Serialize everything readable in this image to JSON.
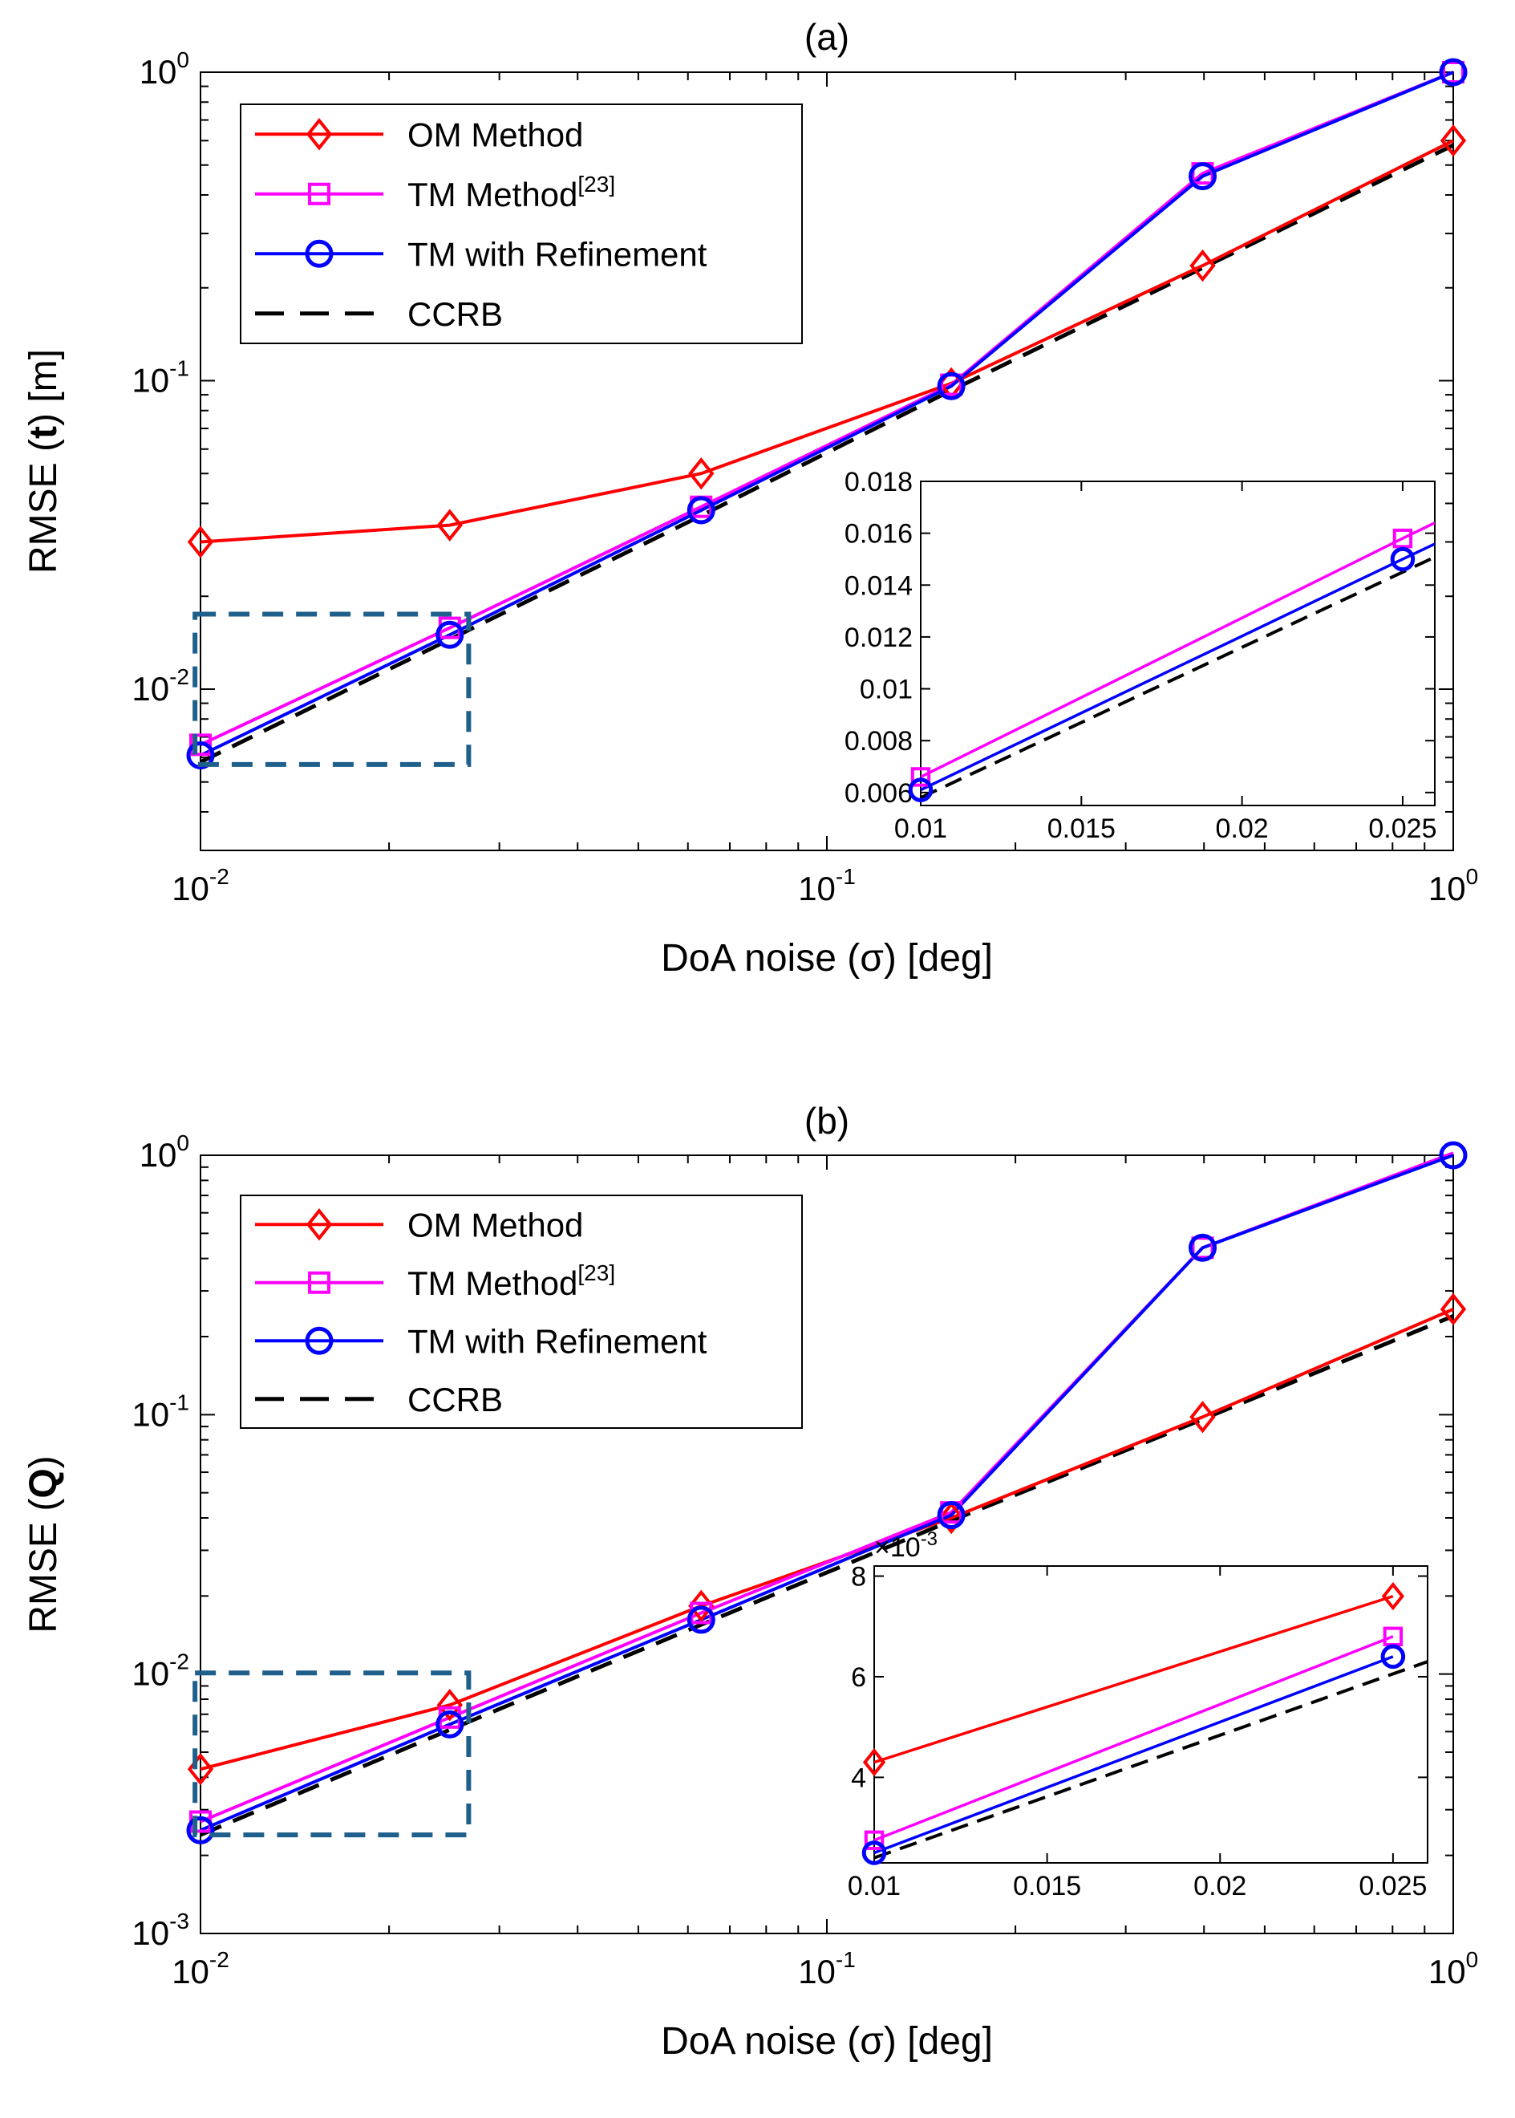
{
  "chart_data": [
    {
      "type": "line",
      "title": "(a)",
      "xlabel": "DoA noise (σ) [deg]",
      "ylabel_prefix": "RMSE (",
      "ylabel_bold": "t",
      "ylabel_suffix": ") [m]",
      "xscale": "log",
      "yscale": "log",
      "xlim": [
        0.01,
        1
      ],
      "ylim": [
        0.003,
        1
      ],
      "x_ticks": [
        {
          "v": 0.01,
          "base": "10",
          "exp": "-2"
        },
        {
          "v": 0.1,
          "base": "10",
          "exp": "-1"
        },
        {
          "v": 1,
          "base": "10",
          "exp": "0"
        }
      ],
      "y_ticks": [
        {
          "v": 0.01,
          "base": "10",
          "exp": "-2"
        },
        {
          "v": 0.1,
          "base": "10",
          "exp": "-1"
        },
        {
          "v": 1,
          "base": "10",
          "exp": "0"
        }
      ],
      "legend_position": "top-left",
      "series": [
        {
          "name": "OM Method",
          "color": "#ff0000",
          "marker": "diamond",
          "dashed": false,
          "x": [
            0.01,
            0.025,
            0.063,
            0.158,
            0.398,
            1.0
          ],
          "y": [
            0.03,
            0.034,
            0.05,
            0.098,
            0.236,
            0.6
          ]
        },
        {
          "name": "TM Method",
          "name_sup": "[23]",
          "color": "#ff00ff",
          "marker": "square",
          "dashed": false,
          "x": [
            0.01,
            0.025,
            0.063,
            0.158,
            0.398,
            1.0
          ],
          "y": [
            0.0066,
            0.0158,
            0.039,
            0.097,
            0.47,
            1.0
          ]
        },
        {
          "name": "TM with Refinement",
          "color": "#0000ff",
          "marker": "circle",
          "dashed": false,
          "x": [
            0.01,
            0.025,
            0.063,
            0.158,
            0.398,
            1.0
          ],
          "y": [
            0.0061,
            0.015,
            0.038,
            0.096,
            0.46,
            1.0
          ]
        },
        {
          "name": "CCRB",
          "color": "#000000",
          "marker": "none",
          "dashed": true,
          "x": [
            0.01,
            0.025,
            0.063,
            0.158,
            0.398,
            1.0
          ],
          "y": [
            0.0058,
            0.0145,
            0.0365,
            0.093,
            0.232,
            0.58
          ]
        }
      ],
      "inset": {
        "highlight_box": {
          "x": [
            0.0098,
            0.0268
          ],
          "y": [
            0.0057,
            0.0175
          ]
        },
        "xlim": [
          0.01,
          0.026
        ],
        "ylim": [
          0.0055,
          0.018
        ],
        "x_ticks": [
          {
            "v": 0.01,
            "label": "0.01"
          },
          {
            "v": 0.015,
            "label": "0.015"
          },
          {
            "v": 0.02,
            "label": "0.02"
          },
          {
            "v": 0.025,
            "label": "0.025"
          }
        ],
        "y_ticks": [
          {
            "v": 0.006,
            "label": "0.006"
          },
          {
            "v": 0.008,
            "label": "0.008"
          },
          {
            "v": 0.01,
            "label": "0.01"
          },
          {
            "v": 0.012,
            "label": "0.012"
          },
          {
            "v": 0.014,
            "label": "0.014"
          },
          {
            "v": 0.016,
            "label": "0.016"
          },
          {
            "v": 0.018,
            "label": "0.018"
          }
        ],
        "multiplier": ""
      }
    },
    {
      "type": "line",
      "title": "(b)",
      "xlabel": "DoA noise (σ) [deg]",
      "ylabel_prefix": "RMSE (",
      "ylabel_bold": "Q",
      "ylabel_suffix": ")",
      "xscale": "log",
      "yscale": "log",
      "xlim": [
        0.01,
        1
      ],
      "ylim": [
        0.001,
        1
      ],
      "x_ticks": [
        {
          "v": 0.01,
          "base": "10",
          "exp": "-2"
        },
        {
          "v": 0.1,
          "base": "10",
          "exp": "-1"
        },
        {
          "v": 1,
          "base": "10",
          "exp": "0"
        }
      ],
      "y_ticks": [
        {
          "v": 0.001,
          "base": "10",
          "exp": "-3"
        },
        {
          "v": 0.01,
          "base": "10",
          "exp": "-2"
        },
        {
          "v": 0.1,
          "base": "10",
          "exp": "-1"
        },
        {
          "v": 1,
          "base": "10",
          "exp": "0"
        }
      ],
      "legend_position": "top-left",
      "series": [
        {
          "name": "OM Method",
          "color": "#ff0000",
          "marker": "diamond",
          "dashed": false,
          "x": [
            0.01,
            0.025,
            0.063,
            0.158,
            0.398,
            1.0
          ],
          "y": [
            0.0043,
            0.0076,
            0.0183,
            0.04,
            0.098,
            0.255
          ]
        },
        {
          "name": "TM Method",
          "name_sup": "[23]",
          "color": "#ff00ff",
          "marker": "square",
          "dashed": false,
          "x": [
            0.01,
            0.025,
            0.063,
            0.158,
            0.398,
            1.0
          ],
          "y": [
            0.0027,
            0.0068,
            0.0172,
            0.042,
            0.44,
            1.02
          ]
        },
        {
          "name": "TM with Refinement",
          "color": "#0000ff",
          "marker": "circle",
          "dashed": false,
          "x": [
            0.01,
            0.025,
            0.063,
            0.158,
            0.398,
            1.0
          ],
          "y": [
            0.0025,
            0.0064,
            0.0162,
            0.041,
            0.44,
            1.0
          ]
        },
        {
          "name": "CCRB",
          "color": "#000000",
          "marker": "none",
          "dashed": true,
          "x": [
            0.01,
            0.025,
            0.063,
            0.158,
            0.398,
            1.0
          ],
          "y": [
            0.0024,
            0.0061,
            0.0155,
            0.039,
            0.096,
            0.24
          ]
        }
      ],
      "inset": {
        "highlight_box": {
          "x": [
            0.0098,
            0.0268
          ],
          "y": [
            0.0024,
            0.0101
          ]
        },
        "xlim": [
          0.01,
          0.026
        ],
        "ylim": [
          0.0023,
          0.0082
        ],
        "x_ticks": [
          {
            "v": 0.01,
            "label": "0.01"
          },
          {
            "v": 0.015,
            "label": "0.015"
          },
          {
            "v": 0.02,
            "label": "0.02"
          },
          {
            "v": 0.025,
            "label": "0.025"
          }
        ],
        "y_ticks": [
          {
            "v": 0.004,
            "label": "4"
          },
          {
            "v": 0.006,
            "label": "6"
          },
          {
            "v": 0.008,
            "label": "8"
          }
        ],
        "multiplier": "×10",
        "multiplier_exp": "-3",
        "series": [
          {
            "name": "OM Method",
            "x": [
              0.01,
              0.025
            ],
            "y": [
              0.0043,
              0.0076
            ]
          },
          {
            "name": "TM Method",
            "x": [
              0.01,
              0.025
            ],
            "y": [
              0.00275,
              0.0068
            ]
          },
          {
            "name": "TM with Refinement",
            "x": [
              0.01,
              0.025
            ],
            "y": [
              0.0025,
              0.0064
            ]
          },
          {
            "name": "CCRB",
            "x": [
              0.01,
              0.026
            ],
            "y": [
              0.0024,
              0.0063
            ]
          }
        ]
      }
    }
  ]
}
